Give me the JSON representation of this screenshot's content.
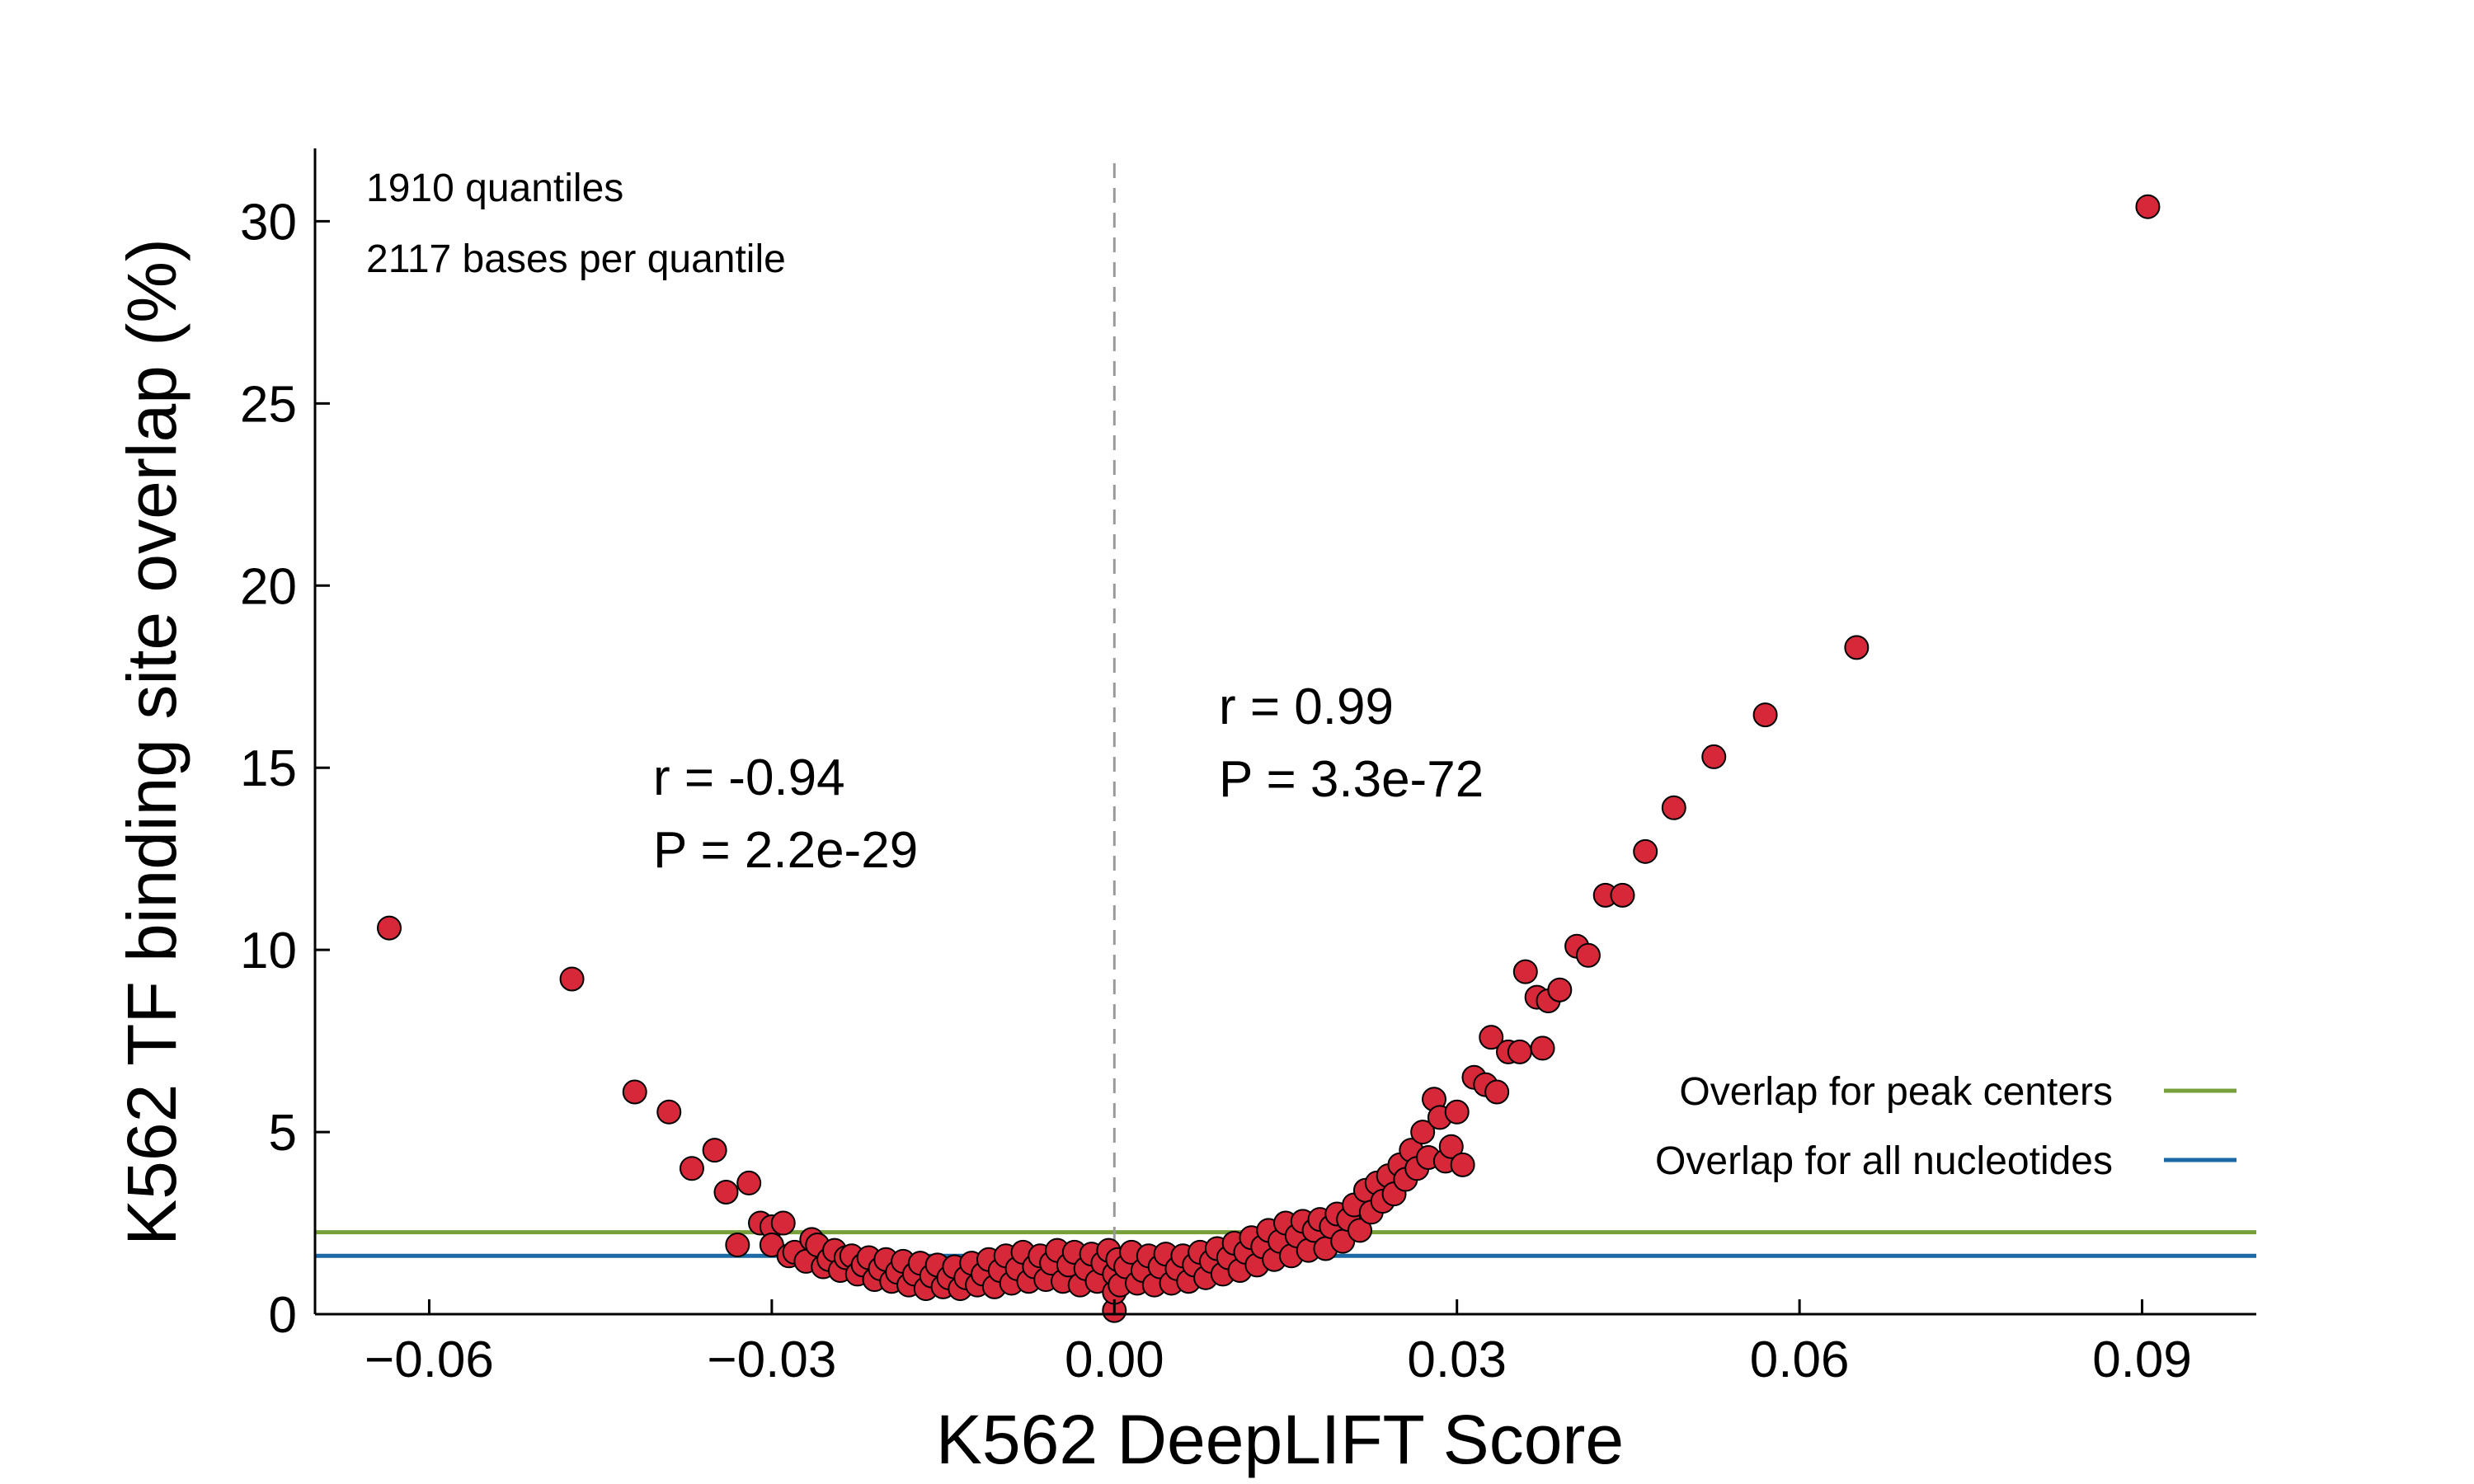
{
  "chart_data": {
    "type": "scatter",
    "title": "",
    "xlabel": "K562 DeepLIFT Score",
    "ylabel": "K562 TF binding site overlap (%)",
    "xlim": [
      -0.07,
      0.1
    ],
    "ylim": [
      0,
      32
    ],
    "xticks": [
      -0.06,
      -0.03,
      0.0,
      0.03,
      0.06,
      0.09
    ],
    "xtick_labels": [
      "−0.06",
      "−0.03",
      "0.00",
      "0.03",
      "0.06",
      "0.09"
    ],
    "yticks": [
      0,
      5,
      10,
      15,
      20,
      25,
      30
    ],
    "ytick_labels": [
      "0",
      "5",
      "10",
      "15",
      "20",
      "25",
      "30"
    ],
    "grid": false,
    "info_lines": [
      "1910 quantiles",
      "2117 bases per quantile"
    ],
    "annotations": [
      {
        "side": "negative",
        "r_text": "r = -0.94",
        "p_text": "P = 2.2e-29"
      },
      {
        "side": "positive",
        "r_text": "r = 0.99",
        "p_text": "P = 3.3e-72"
      }
    ],
    "reference_line": {
      "x": 0.0,
      "style": "dashed",
      "color": "#999999"
    },
    "hlines": [
      {
        "label": "Overlap for peak centers",
        "y": 2.25,
        "color": "#77a03b"
      },
      {
        "label": "Overlap for all nucleotides",
        "y": 1.6,
        "color": "#1b6aa5"
      }
    ],
    "legend_position": "lower-right",
    "marker_color": "#d7283a",
    "marker_edge": "#000000",
    "series": [
      {
        "points": [
          [
            -0.0635,
            10.6
          ],
          [
            -0.0475,
            9.2
          ],
          [
            -0.042,
            6.1
          ],
          [
            -0.039,
            5.55
          ],
          [
            -0.037,
            4.0
          ],
          [
            -0.035,
            4.5
          ],
          [
            -0.034,
            3.35
          ],
          [
            -0.032,
            3.6
          ],
          [
            -0.033,
            1.9
          ],
          [
            -0.031,
            2.5
          ],
          [
            -0.03,
            2.4
          ],
          [
            -0.029,
            2.5
          ],
          [
            -0.03,
            1.9
          ],
          [
            -0.0285,
            1.6
          ],
          [
            -0.028,
            1.7
          ],
          [
            -0.027,
            1.45
          ],
          [
            -0.0265,
            2.05
          ],
          [
            -0.026,
            1.9
          ],
          [
            -0.0255,
            1.3
          ],
          [
            -0.025,
            1.5
          ],
          [
            -0.0245,
            1.75
          ],
          [
            -0.024,
            1.2
          ],
          [
            -0.0235,
            1.55
          ],
          [
            -0.023,
            1.6
          ],
          [
            -0.0225,
            1.1
          ],
          [
            -0.022,
            1.35
          ],
          [
            -0.0215,
            1.55
          ],
          [
            -0.021,
            0.95
          ],
          [
            -0.0205,
            1.25
          ],
          [
            -0.02,
            1.5
          ],
          [
            -0.0195,
            0.9
          ],
          [
            -0.019,
            1.15
          ],
          [
            -0.0185,
            1.45
          ],
          [
            -0.018,
            0.8
          ],
          [
            -0.0175,
            1.1
          ],
          [
            -0.017,
            1.4
          ],
          [
            -0.0165,
            0.7
          ],
          [
            -0.016,
            1.05
          ],
          [
            -0.0155,
            1.35
          ],
          [
            -0.015,
            0.75
          ],
          [
            -0.0145,
            1.0
          ],
          [
            -0.014,
            1.3
          ],
          [
            -0.0135,
            0.7
          ],
          [
            -0.013,
            1.0
          ],
          [
            -0.0125,
            1.4
          ],
          [
            -0.012,
            0.8
          ],
          [
            -0.0115,
            1.1
          ],
          [
            -0.011,
            1.5
          ],
          [
            -0.0105,
            0.75
          ],
          [
            -0.01,
            1.2
          ],
          [
            -0.0095,
            1.6
          ],
          [
            -0.009,
            0.85
          ],
          [
            -0.0085,
            1.25
          ],
          [
            -0.008,
            1.7
          ],
          [
            -0.0075,
            0.9
          ],
          [
            -0.007,
            1.3
          ],
          [
            -0.0065,
            1.6
          ],
          [
            -0.006,
            0.95
          ],
          [
            -0.0055,
            1.4
          ],
          [
            -0.005,
            1.75
          ],
          [
            -0.0045,
            0.9
          ],
          [
            -0.004,
            1.35
          ],
          [
            -0.0035,
            1.7
          ],
          [
            -0.003,
            0.8
          ],
          [
            -0.0025,
            1.25
          ],
          [
            -0.002,
            1.65
          ],
          [
            -0.0015,
            0.9
          ],
          [
            -0.001,
            1.4
          ],
          [
            -0.0005,
            1.75
          ],
          [
            0.0,
            0.1
          ],
          [
            0.0,
            0.6
          ],
          [
            0.0,
            1.1
          ],
          [
            0.0003,
            1.5
          ],
          [
            0.0005,
            0.8
          ],
          [
            0.001,
            1.3
          ],
          [
            0.0015,
            1.7
          ],
          [
            0.002,
            0.85
          ],
          [
            0.0025,
            1.2
          ],
          [
            0.003,
            1.6
          ],
          [
            0.0035,
            0.8
          ],
          [
            0.004,
            1.3
          ],
          [
            0.0045,
            1.65
          ],
          [
            0.005,
            0.85
          ],
          [
            0.0055,
            1.25
          ],
          [
            0.006,
            1.6
          ],
          [
            0.0065,
            0.9
          ],
          [
            0.007,
            1.35
          ],
          [
            0.0075,
            1.7
          ],
          [
            0.008,
            1.0
          ],
          [
            0.0085,
            1.45
          ],
          [
            0.009,
            1.8
          ],
          [
            0.0095,
            1.1
          ],
          [
            0.01,
            1.55
          ],
          [
            0.0105,
            1.95
          ],
          [
            0.011,
            1.2
          ],
          [
            0.0115,
            1.7
          ],
          [
            0.012,
            2.1
          ],
          [
            0.0125,
            1.35
          ],
          [
            0.013,
            1.85
          ],
          [
            0.0135,
            2.3
          ],
          [
            0.014,
            1.5
          ],
          [
            0.0145,
            2.0
          ],
          [
            0.015,
            2.5
          ],
          [
            0.0155,
            1.6
          ],
          [
            0.016,
            2.15
          ],
          [
            0.0165,
            2.55
          ],
          [
            0.017,
            1.75
          ],
          [
            0.0175,
            2.3
          ],
          [
            0.018,
            2.6
          ],
          [
            0.0185,
            1.8
          ],
          [
            0.019,
            2.4
          ],
          [
            0.0195,
            2.75
          ],
          [
            0.02,
            2.0
          ],
          [
            0.0205,
            2.6
          ],
          [
            0.021,
            3.0
          ],
          [
            0.0215,
            2.3
          ],
          [
            0.022,
            3.4
          ],
          [
            0.0225,
            2.8
          ],
          [
            0.023,
            3.6
          ],
          [
            0.0235,
            3.1
          ],
          [
            0.024,
            3.8
          ],
          [
            0.0245,
            3.3
          ],
          [
            0.025,
            4.1
          ],
          [
            0.0255,
            3.7
          ],
          [
            0.026,
            4.5
          ],
          [
            0.0265,
            4.0
          ],
          [
            0.027,
            5.0
          ],
          [
            0.0275,
            4.3
          ],
          [
            0.028,
            5.9
          ],
          [
            0.0285,
            5.4
          ],
          [
            0.029,
            4.2
          ],
          [
            0.0295,
            4.6
          ],
          [
            0.03,
            5.55
          ],
          [
            0.0305,
            4.1
          ],
          [
            0.0315,
            6.5
          ],
          [
            0.0325,
            6.3
          ],
          [
            0.033,
            7.6
          ],
          [
            0.0335,
            6.1
          ],
          [
            0.0345,
            7.2
          ],
          [
            0.0355,
            7.2
          ],
          [
            0.036,
            9.4
          ],
          [
            0.037,
            8.7
          ],
          [
            0.0375,
            7.3
          ],
          [
            0.038,
            8.6
          ],
          [
            0.039,
            8.9
          ],
          [
            0.0405,
            10.1
          ],
          [
            0.0415,
            9.85
          ],
          [
            0.043,
            11.5
          ],
          [
            0.0445,
            11.5
          ],
          [
            0.0465,
            12.7
          ],
          [
            0.049,
            13.9
          ],
          [
            0.0525,
            15.3
          ],
          [
            0.057,
            16.45
          ],
          [
            0.065,
            18.3
          ],
          [
            0.0905,
            30.4
          ]
        ]
      }
    ]
  }
}
